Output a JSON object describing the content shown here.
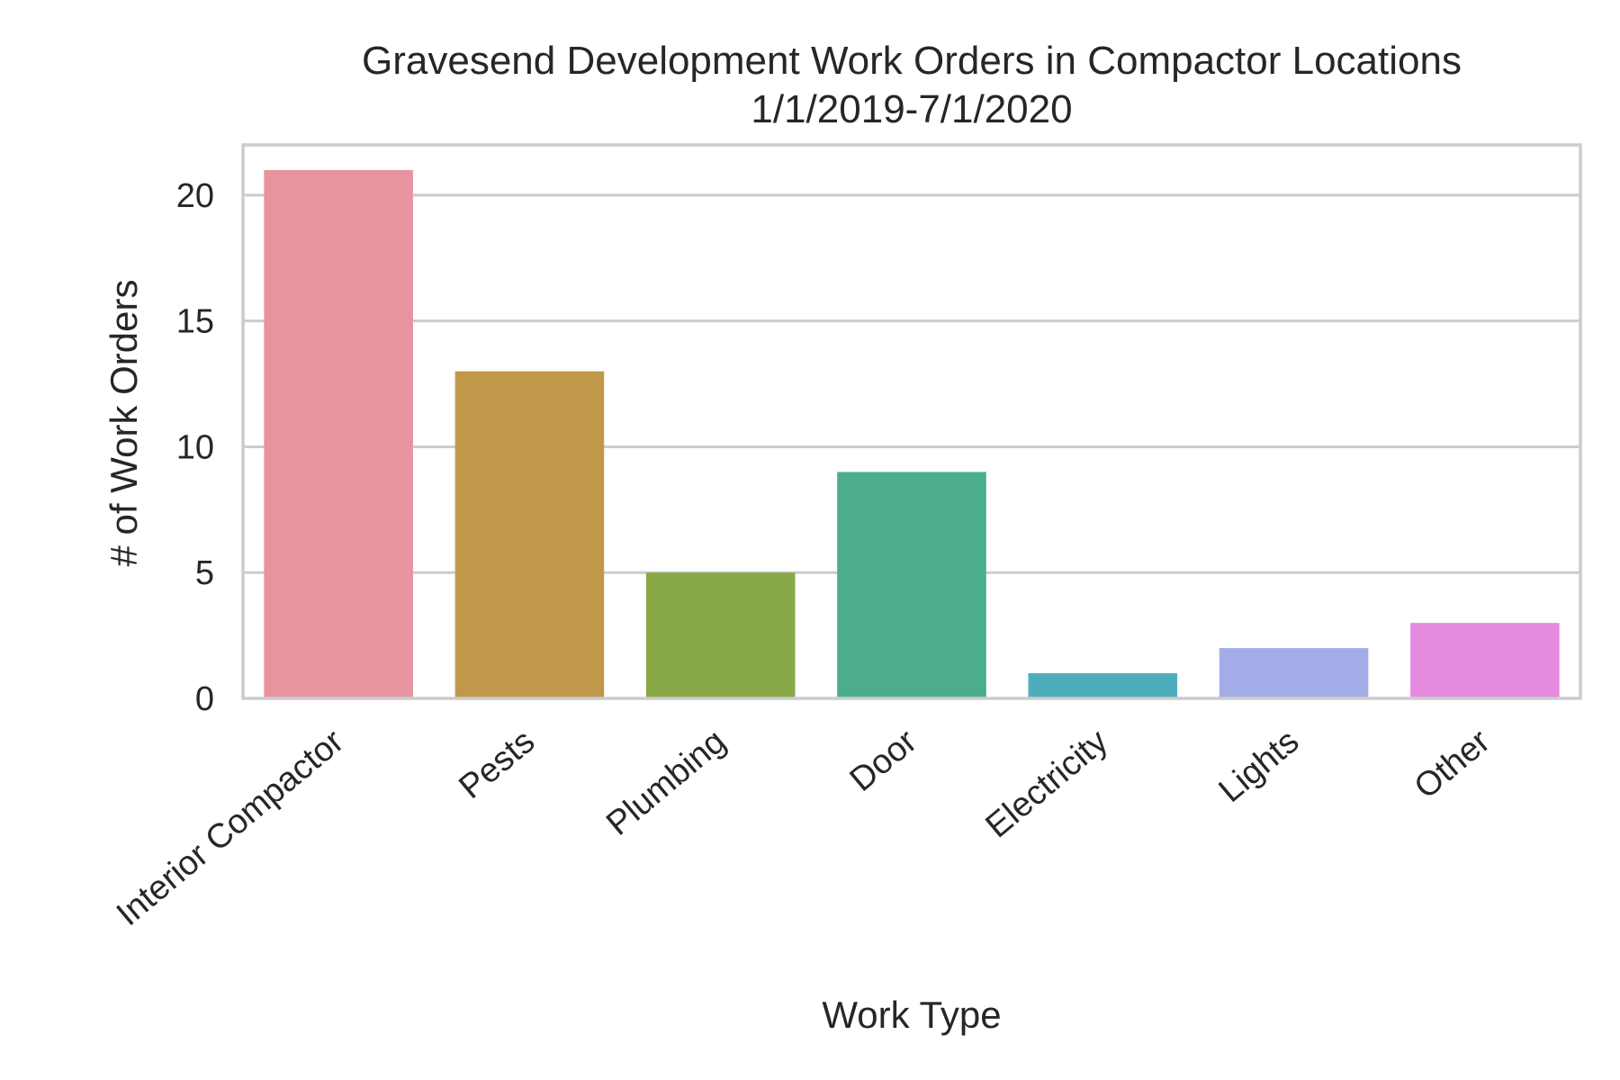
{
  "chart_data": {
    "type": "bar",
    "title": "Gravesend Development Work Orders in Compactor Locations",
    "subtitle": "1/1/2019-7/1/2020",
    "xlabel": "Work Type",
    "ylabel": "# of Work Orders",
    "categories": [
      "Interior Compactor",
      "Pests",
      "Plumbing",
      "Door",
      "Electricity",
      "Lights",
      "Other"
    ],
    "values": [
      21,
      13,
      5,
      9,
      1,
      2,
      3
    ],
    "colors": [
      "#e8949f",
      "#c0984a",
      "#89a847",
      "#4bac8e",
      "#4eadbc",
      "#a2ade8",
      "#e68ae0"
    ],
    "ylim": [
      0,
      22
    ],
    "yticks": [
      0,
      5,
      10,
      15,
      20
    ],
    "ytick_labels": [
      "0",
      "5",
      "10",
      "15",
      "20"
    ],
    "grid": true,
    "legend": false
  }
}
